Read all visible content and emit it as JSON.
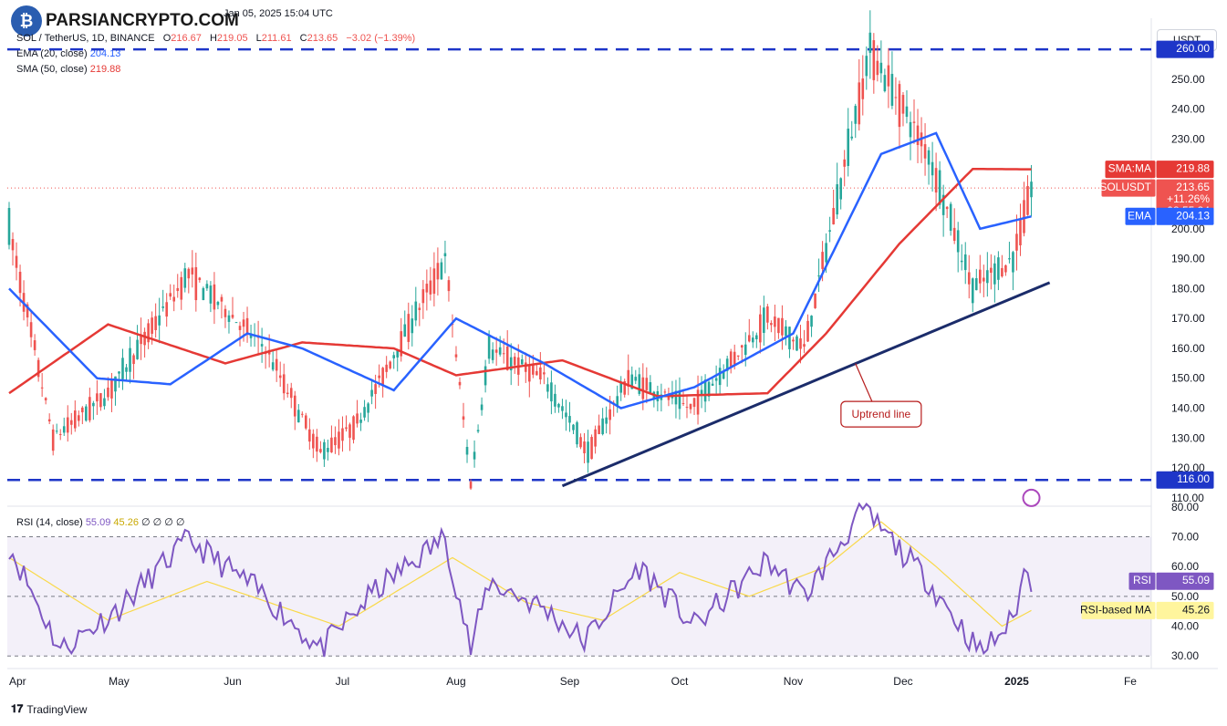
{
  "header": {
    "logo_text": "PARSIANCRYPTO.COM",
    "date_text": "Jan 05, 2025 15:04 UTC"
  },
  "legend": {
    "symbol": "SOL / TetherUS, 1D, BINANCE",
    "o_label": "O",
    "o_value": "216.67",
    "h_label": "H",
    "h_value": "219.05",
    "l_label": "L",
    "l_value": "211.61",
    "c_label": "C",
    "c_value": "213.65",
    "change": "−3.02 (−1.39%)",
    "ema_label": "EMA (20, close)",
    "ema_value": "204.13",
    "sma_label": "SMA (50, close)",
    "sma_value": "219.88",
    "rsi_label": "RSI (14, close)",
    "rsi_value": "55.09",
    "rsi_ma_value": "45.26",
    "rsi_extra": "∅ ∅ ∅ ∅"
  },
  "currency_button": "USDT",
  "footer": {
    "brand": "TradingView"
  },
  "colors": {
    "up": "#26a69a",
    "down": "#ef5350",
    "ema": "#2962ff",
    "sma": "#e53935",
    "rsi": "#7e57c2",
    "rsi_ma": "#f9d94a",
    "hline": "#1e36c8",
    "trend": "#1b2c6a",
    "annotation": "#b71c1c"
  },
  "chart_data": {
    "type": "candlestick",
    "symbol": "SOLUSDT",
    "interval": "1D",
    "y_axis_ticks": [
      "260.00",
      "250.00",
      "240.00",
      "230.00",
      "220.00",
      "210.00",
      "200.00",
      "190.00",
      "180.00",
      "170.00",
      "160.00",
      "150.00",
      "140.00",
      "130.00",
      "120.00",
      "110.00"
    ],
    "ylim": [
      106,
      264
    ],
    "x_axis_labels": [
      "Apr",
      "May",
      "Jun",
      "Jul",
      "Aug",
      "Sep",
      "Oct",
      "Nov",
      "Dec",
      "2025",
      "Fe"
    ],
    "price_points": [
      {
        "date": "Apr 1",
        "price": 200
      },
      {
        "date": "Apr 13",
        "price": 130
      },
      {
        "date": "Apr 28",
        "price": 145
      },
      {
        "date": "May 20",
        "price": 185
      },
      {
        "date": "Jun 10",
        "price": 160
      },
      {
        "date": "Jun 25",
        "price": 125
      },
      {
        "date": "Jul 5",
        "price": 135
      },
      {
        "date": "Jul 29",
        "price": 190
      },
      {
        "date": "Aug 5",
        "price": 115
      },
      {
        "date": "Aug 10",
        "price": 160
      },
      {
        "date": "Aug 25",
        "price": 150
      },
      {
        "date": "Sep 6",
        "price": 125
      },
      {
        "date": "Sep 17",
        "price": 150
      },
      {
        "date": "Oct 4",
        "price": 140
      },
      {
        "date": "Oct 25",
        "price": 170
      },
      {
        "date": "Nov 4",
        "price": 160
      },
      {
        "date": "Nov 22",
        "price": 260
      },
      {
        "date": "Dec 8",
        "price": 225
      },
      {
        "date": "Dec 20",
        "price": 180
      },
      {
        "date": "Dec 31",
        "price": 190
      },
      {
        "date": "Jan 5",
        "price": 213.65
      }
    ],
    "ema_points": [
      {
        "date": "Apr 1",
        "price": 180
      },
      {
        "date": "Apr 25",
        "price": 150
      },
      {
        "date": "May 15",
        "price": 148
      },
      {
        "date": "Jun 5",
        "price": 165
      },
      {
        "date": "Jun 20",
        "price": 160
      },
      {
        "date": "Jul 15",
        "price": 146
      },
      {
        "date": "Aug 1",
        "price": 170
      },
      {
        "date": "Aug 25",
        "price": 155
      },
      {
        "date": "Sep 15",
        "price": 140
      },
      {
        "date": "Oct 5",
        "price": 147
      },
      {
        "date": "Nov 1",
        "price": 165
      },
      {
        "date": "Nov 25",
        "price": 225
      },
      {
        "date": "Dec 10",
        "price": 232
      },
      {
        "date": "Dec 22",
        "price": 200
      },
      {
        "date": "Jan 5",
        "price": 204.13
      }
    ],
    "sma_points": [
      {
        "date": "Apr 1",
        "price": 145
      },
      {
        "date": "Apr 28",
        "price": 168
      },
      {
        "date": "May 30",
        "price": 155
      },
      {
        "date": "Jun 20",
        "price": 162
      },
      {
        "date": "Jul 15",
        "price": 160
      },
      {
        "date": "Aug 1",
        "price": 151
      },
      {
        "date": "Aug 30",
        "price": 156
      },
      {
        "date": "Sep 25",
        "price": 144
      },
      {
        "date": "Oct 25",
        "price": 145
      },
      {
        "date": "Nov 10",
        "price": 165
      },
      {
        "date": "Nov 30",
        "price": 195
      },
      {
        "date": "Dec 20",
        "price": 220
      },
      {
        "date": "Jan 5",
        "price": 219.88
      }
    ],
    "horizontal_levels": [
      {
        "label": "260.00",
        "price": 260
      },
      {
        "label": "116.00",
        "price": 116
      }
    ],
    "trendline": {
      "start": {
        "date": "Aug 30",
        "price": 114
      },
      "end": {
        "date": "Jan 10",
        "price": 182
      }
    },
    "annotation": "Uptrend line",
    "price_labels": [
      {
        "name": "SMA:MA",
        "value": "219.88",
        "price": 219.88
      },
      {
        "name": "SOLUSDT",
        "value": "213.65",
        "price": 213.65,
        "extra": [
          "+11.26%",
          "08:55:34"
        ]
      },
      {
        "name": "EMA",
        "value": "204.13",
        "price": 204.13
      }
    ],
    "rsi": {
      "y_axis_ticks": [
        "80.00",
        "70.00",
        "60.00",
        "50.00",
        "40.00",
        "30.00"
      ],
      "ylim": [
        27,
        83
      ],
      "band": [
        30,
        70
      ],
      "mid": 50,
      "points": [
        {
          "date": "Apr 1",
          "value": 67
        },
        {
          "date": "Apr 15",
          "value": 32
        },
        {
          "date": "May 1",
          "value": 46
        },
        {
          "date": "May 20",
          "value": 69
        },
        {
          "date": "Jun 10",
          "value": 50
        },
        {
          "date": "Jun 25",
          "value": 32
        },
        {
          "date": "Jul 10",
          "value": 52
        },
        {
          "date": "Jul 29",
          "value": 70
        },
        {
          "date": "Aug 5",
          "value": 32
        },
        {
          "date": "Aug 10",
          "value": 55
        },
        {
          "date": "Aug 25",
          "value": 46
        },
        {
          "date": "Sep 5",
          "value": 35
        },
        {
          "date": "Sep 20",
          "value": 60
        },
        {
          "date": "Oct 5",
          "value": 40
        },
        {
          "date": "Oct 25",
          "value": 62
        },
        {
          "date": "Nov 4",
          "value": 50
        },
        {
          "date": "Nov 20",
          "value": 79
        },
        {
          "date": "Dec 8",
          "value": 55
        },
        {
          "date": "Dec 22",
          "value": 31
        },
        {
          "date": "Dec 31",
          "value": 42
        },
        {
          "date": "Jan 3",
          "value": 58
        },
        {
          "date": "Jan 5",
          "value": 55.09
        }
      ],
      "ma_points": [
        {
          "date": "Apr 1",
          "value": 63
        },
        {
          "date": "Apr 28",
          "value": 42
        },
        {
          "date": "May 25",
          "value": 55
        },
        {
          "date": "Jun 30",
          "value": 40
        },
        {
          "date": "Jul 31",
          "value": 63
        },
        {
          "date": "Aug 20",
          "value": 48
        },
        {
          "date": "Sep 10",
          "value": 42
        },
        {
          "date": "Oct 1",
          "value": 58
        },
        {
          "date": "Oct 20",
          "value": 50
        },
        {
          "date": "Nov 10",
          "value": 60
        },
        {
          "date": "Nov 25",
          "value": 75
        },
        {
          "date": "Dec 10",
          "value": 60
        },
        {
          "date": "Dec 28",
          "value": 40
        },
        {
          "date": "Jan 5",
          "value": 45.26
        }
      ],
      "labels": [
        {
          "name": "RSI",
          "value": "55.09"
        },
        {
          "name": "RSI-based MA",
          "value": "45.26"
        }
      ]
    }
  }
}
